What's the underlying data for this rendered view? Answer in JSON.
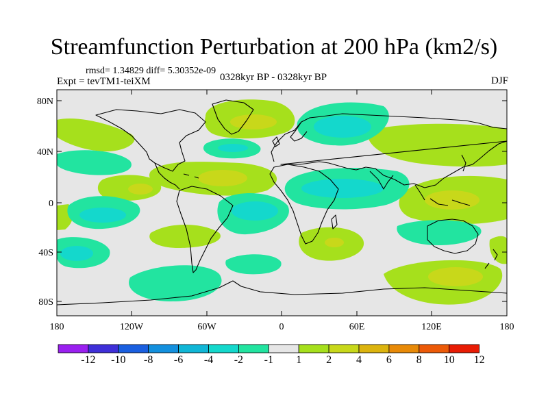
{
  "title": "Streamfunction Perturbation at 200 hPa (km2/s)",
  "stats": "rmsd= 1.34829  diff= 5.30352e-09",
  "experiment": "Expt = tevTM1-teiXM",
  "period": "0328kyr BP - 0328kyr BP",
  "season": "DJF",
  "lat_labels": [
    "80N",
    "40N",
    "0",
    "40S",
    "80S"
  ],
  "lon_labels": [
    "180",
    "120W",
    "60W",
    "0",
    "60E",
    "120E",
    "180"
  ],
  "colorbar": {
    "labels": [
      "-12",
      "-10",
      "-8",
      "-6",
      "-4",
      "-2",
      "-1",
      "1",
      "2",
      "4",
      "6",
      "8",
      "10",
      "12"
    ],
    "colors": [
      "#9a20f0",
      "#3f2fd8",
      "#1a5fe0",
      "#1390de",
      "#10b6d6",
      "#14d8cc",
      "#22e4a0",
      "#e6e6e6",
      "#a6e01c",
      "#c8d81a",
      "#dcb40e",
      "#e88a08",
      "#ec5a08",
      "#e81c04"
    ]
  },
  "field_colors": {
    "background": "#e6e6e6",
    "pos1": "#a6e01c",
    "pos2": "#c8d81a",
    "neg1": "#22e4a0",
    "neg2": "#14d8cc"
  }
}
